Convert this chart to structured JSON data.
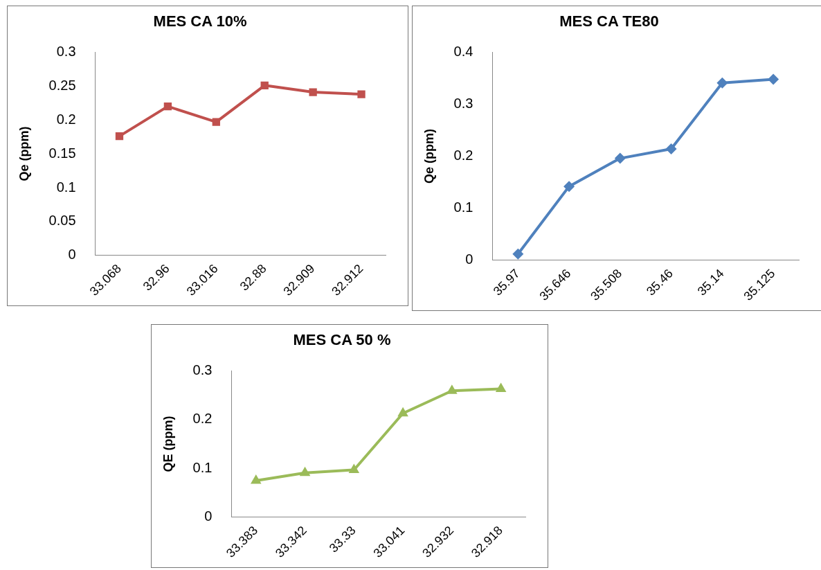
{
  "chart_data": [
    {
      "type": "line",
      "title": "MES CA 10%",
      "ylabel": "Qe (ppm)",
      "categories": [
        "33.068",
        "32.96",
        "33.016",
        "32.88",
        "32.909",
        "32.912"
      ],
      "series": [
        {
          "color": "#c0504d",
          "values": [
            0.176,
            0.22,
            0.197,
            0.251,
            0.241,
            0.238
          ]
        }
      ],
      "ylim": [
        0,
        0.3
      ],
      "yticks": [
        0,
        0.05,
        0.1,
        0.15,
        0.2,
        0.25,
        0.3
      ],
      "marker": "square",
      "grid": false,
      "legend": false
    },
    {
      "type": "line",
      "title": "MES CA TE80",
      "ylabel": "Qe (ppm)",
      "categories": [
        "35.97",
        "35.646",
        "35.508",
        "35.46",
        "35.14",
        "35.125"
      ],
      "series": [
        {
          "color": "#4f81bd",
          "values": [
            0.012,
            0.142,
            0.196,
            0.214,
            0.341,
            0.348
          ]
        }
      ],
      "ylim": [
        0,
        0.4
      ],
      "yticks": [
        0,
        0.1,
        0.2,
        0.3,
        0.4
      ],
      "marker": "diamond",
      "grid": false,
      "legend": false
    },
    {
      "type": "line",
      "title": "MES CA 50 %",
      "ylabel": "QE (ppm)",
      "categories": [
        "33.383",
        "33.342",
        "33.33",
        "33.041",
        "32.932",
        "32.918"
      ],
      "series": [
        {
          "color": "#9bbb59",
          "values": [
            0.075,
            0.091,
            0.097,
            0.213,
            0.259,
            0.263
          ]
        }
      ],
      "ylim": [
        0,
        0.3
      ],
      "yticks": [
        0,
        0.1,
        0.2,
        0.3
      ],
      "marker": "triangle",
      "grid": false,
      "legend": false
    }
  ]
}
